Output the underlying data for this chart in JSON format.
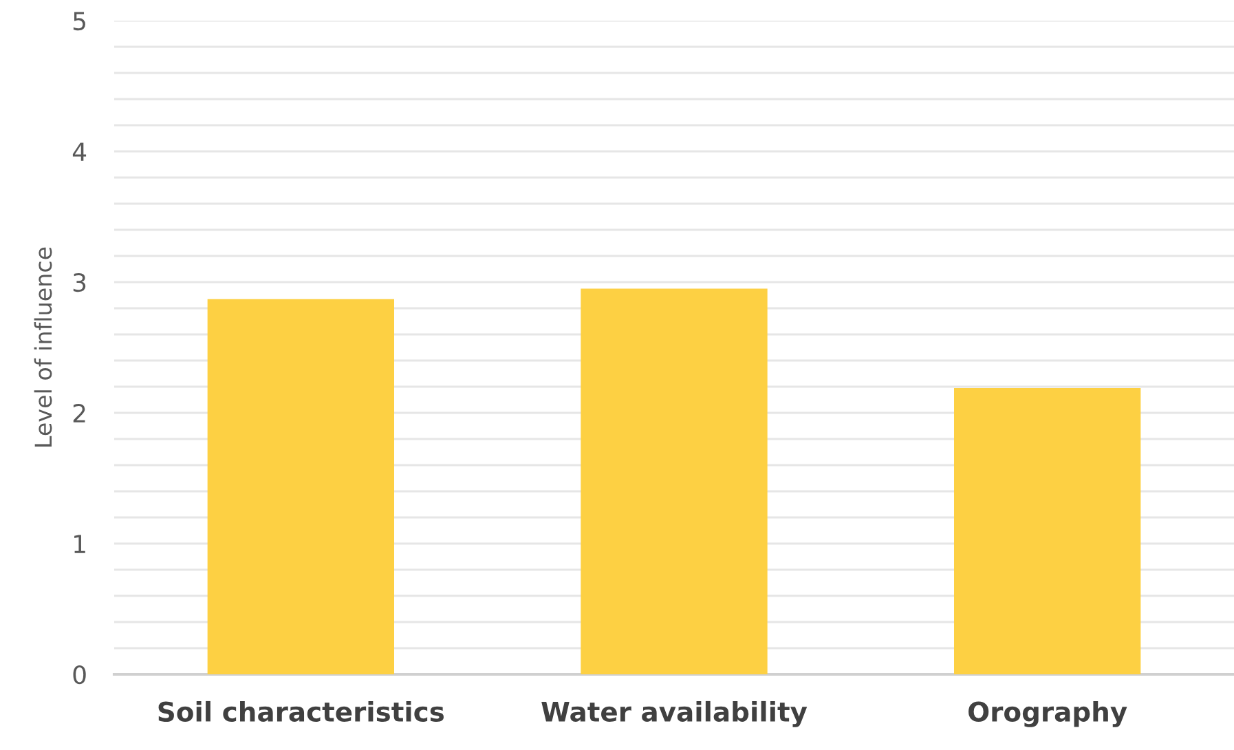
{
  "chart_data": {
    "type": "bar",
    "ylabel": "Level of influence",
    "categories": [
      "Soil characteristics",
      "Water availability",
      "Orography"
    ],
    "values": [
      2.87,
      2.95,
      2.19
    ],
    "color": "#fdd043",
    "ylim": [
      0,
      5
    ],
    "yticks": [
      0,
      {
        "value": 0.2,
        "label": null
      },
      {
        "value": 0.4,
        "label": null
      },
      {
        "value": 0.6,
        "label": null
      },
      {
        "value": 0.8,
        "label": null
      },
      1,
      {
        "value": 1.2,
        "label": null
      },
      {
        "value": 1.4,
        "label": null
      },
      {
        "value": 1.6,
        "label": null
      },
      {
        "value": 1.8,
        "label": null
      },
      2,
      {
        "value": 2.2,
        "label": null
      },
      {
        "value": 2.4,
        "label": null
      },
      {
        "value": 2.6,
        "label": null
      },
      {
        "value": 2.8,
        "label": null
      },
      3,
      {
        "value": 3.2,
        "label": null
      },
      {
        "value": 3.4,
        "label": null
      },
      {
        "value": 3.6,
        "label": null
      },
      {
        "value": 3.8,
        "label": null
      },
      4,
      {
        "value": 4.2,
        "label": null
      },
      {
        "value": 4.4,
        "label": null
      },
      {
        "value": 4.6,
        "label": null
      },
      {
        "value": 4.8,
        "label": null
      },
      5
    ],
    "grid": "y"
  }
}
